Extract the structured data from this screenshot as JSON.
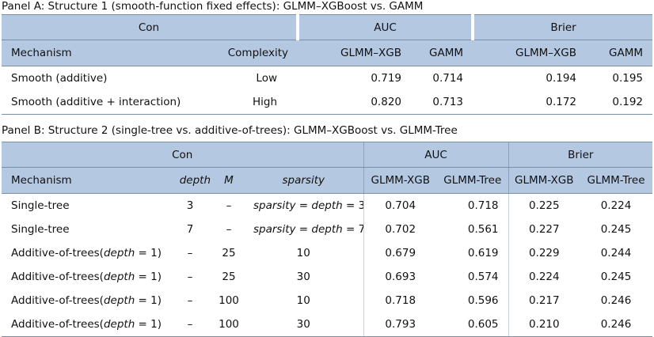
{
  "panelA": {
    "caption": "Panel A: Structure 1 (smooth-function fixed effects): GLMM–XGBoost vs. GAMM",
    "groups": {
      "con": "Con",
      "auc": "AUC",
      "brier": "Brier"
    },
    "headers": {
      "mechanism": "Mechanism",
      "complexity": "Complexity",
      "auc_glmm": "GLMM–XGB",
      "auc_gamm": "GAMM",
      "brier_glmm": "GLMM–XGB",
      "brier_gamm": "GAMM"
    },
    "rows": [
      {
        "mechanism": "Smooth (additive)",
        "complexity": "Low",
        "auc_glmm": "0.719",
        "auc_gamm": "0.714",
        "brier_glmm": "0.194",
        "brier_gamm": "0.195"
      },
      {
        "mechanism": "Smooth (additive + interaction)",
        "complexity": "High",
        "auc_glmm": "0.820",
        "auc_gamm": "0.713",
        "brier_glmm": "0.172",
        "brier_gamm": "0.192"
      }
    ]
  },
  "panelB": {
    "caption": "Panel B: Structure 2 (single-tree vs. additive-of-trees): GLMM–XGBoost vs. GLMM-Tree",
    "groups": {
      "con": "Con",
      "auc": "AUC",
      "brier": "Brier"
    },
    "headers": {
      "mechanism": "Mechanism",
      "depth": "depth",
      "m": "M",
      "sparsity": "sparsity",
      "auc_glmm": "GLMM-XGB",
      "auc_tree": "GLMM-Tree",
      "brier_glmm": "GLMM-XGB",
      "brier_tree": "GLMM-Tree"
    },
    "rows": [
      {
        "mech_base": "Single-tree",
        "mech_depth": "",
        "depth": "3",
        "m": "–",
        "sparsity": "",
        "sp_a": "sparsity",
        "sp_b": " = ",
        "sp_c": "depth",
        "sp_d": " = 3",
        "auc_glmm": "0.704",
        "auc_tree": "0.718",
        "brier_glmm": "0.225",
        "brier_tree": "0.224"
      },
      {
        "mech_base": "Single-tree",
        "mech_depth": "",
        "depth": "7",
        "m": "–",
        "sparsity": "",
        "sp_a": "sparsity",
        "sp_b": " = ",
        "sp_c": "depth",
        "sp_d": " = 7",
        "auc_glmm": "0.702",
        "auc_tree": "0.561",
        "brier_glmm": "0.227",
        "brier_tree": "0.245"
      },
      {
        "mech_base": "Additive-of-trees(",
        "mech_depth": "depth",
        "mech_tail": " = 1)",
        "depth": "–",
        "m": "25",
        "sparsity": "10",
        "auc_glmm": "0.679",
        "auc_tree": "0.619",
        "brier_glmm": "0.229",
        "brier_tree": "0.244"
      },
      {
        "mech_base": "Additive-of-trees(",
        "mech_depth": "depth",
        "mech_tail": " = 1)",
        "depth": "–",
        "m": "25",
        "sparsity": "30",
        "auc_glmm": "0.693",
        "auc_tree": "0.574",
        "brier_glmm": "0.224",
        "brier_tree": "0.245"
      },
      {
        "mech_base": "Additive-of-trees(",
        "mech_depth": "depth",
        "mech_tail": " = 1)",
        "depth": "–",
        "m": "100",
        "sparsity": "10",
        "auc_glmm": "0.718",
        "auc_tree": "0.596",
        "brier_glmm": "0.217",
        "brier_tree": "0.246"
      },
      {
        "mech_base": "Additive-of-trees(",
        "mech_depth": "depth",
        "mech_tail": " = 1)",
        "depth": "–",
        "m": "100",
        "sparsity": "30",
        "auc_glmm": "0.793",
        "auc_tree": "0.605",
        "brier_glmm": "0.210",
        "brier_tree": "0.246"
      }
    ]
  }
}
